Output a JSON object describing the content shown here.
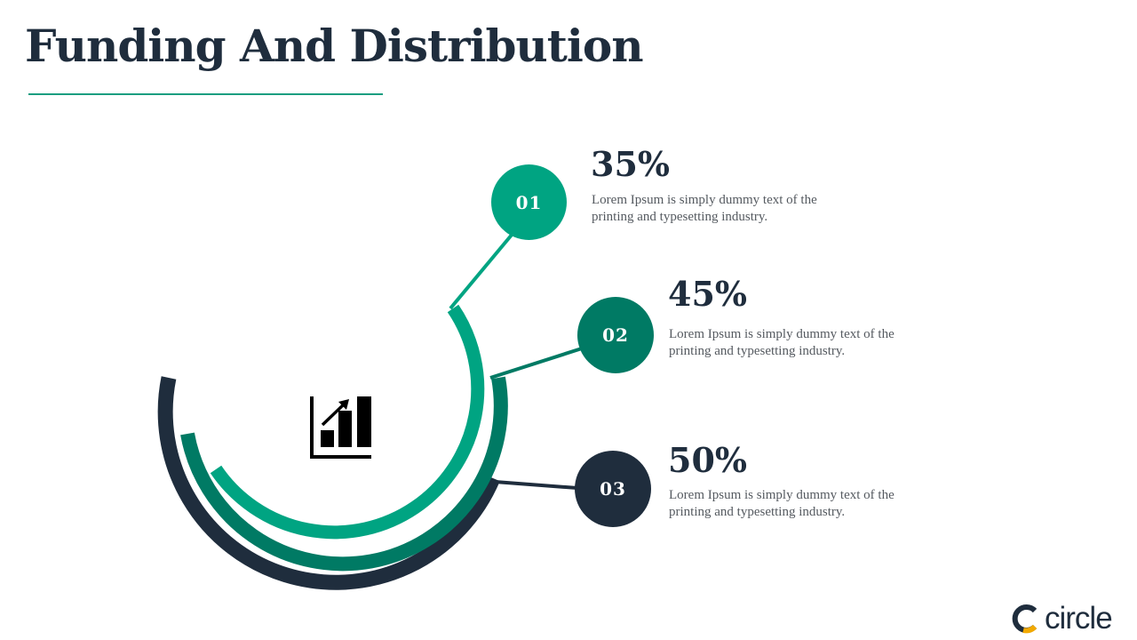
{
  "title": "Funding And Distribution",
  "colors": {
    "teal": "#00a482",
    "green": "#007a64",
    "navy": "#1f2d3d",
    "brand_accent": "#f2a900"
  },
  "icon": "bar-chart-growth-icon",
  "items": [
    {
      "number": "01",
      "percent": "35%",
      "text": "Lorem Ipsum is simply dummy text of the printing and typesetting industry."
    },
    {
      "number": "02",
      "percent": "45%",
      "text": "Lorem Ipsum is simply dummy text of the printing and typesetting industry."
    },
    {
      "number": "03",
      "percent": "50%",
      "text": "Lorem Ipsum is simply dummy text of the printing and typesetting industry."
    }
  ],
  "brand": {
    "name": "circle"
  }
}
